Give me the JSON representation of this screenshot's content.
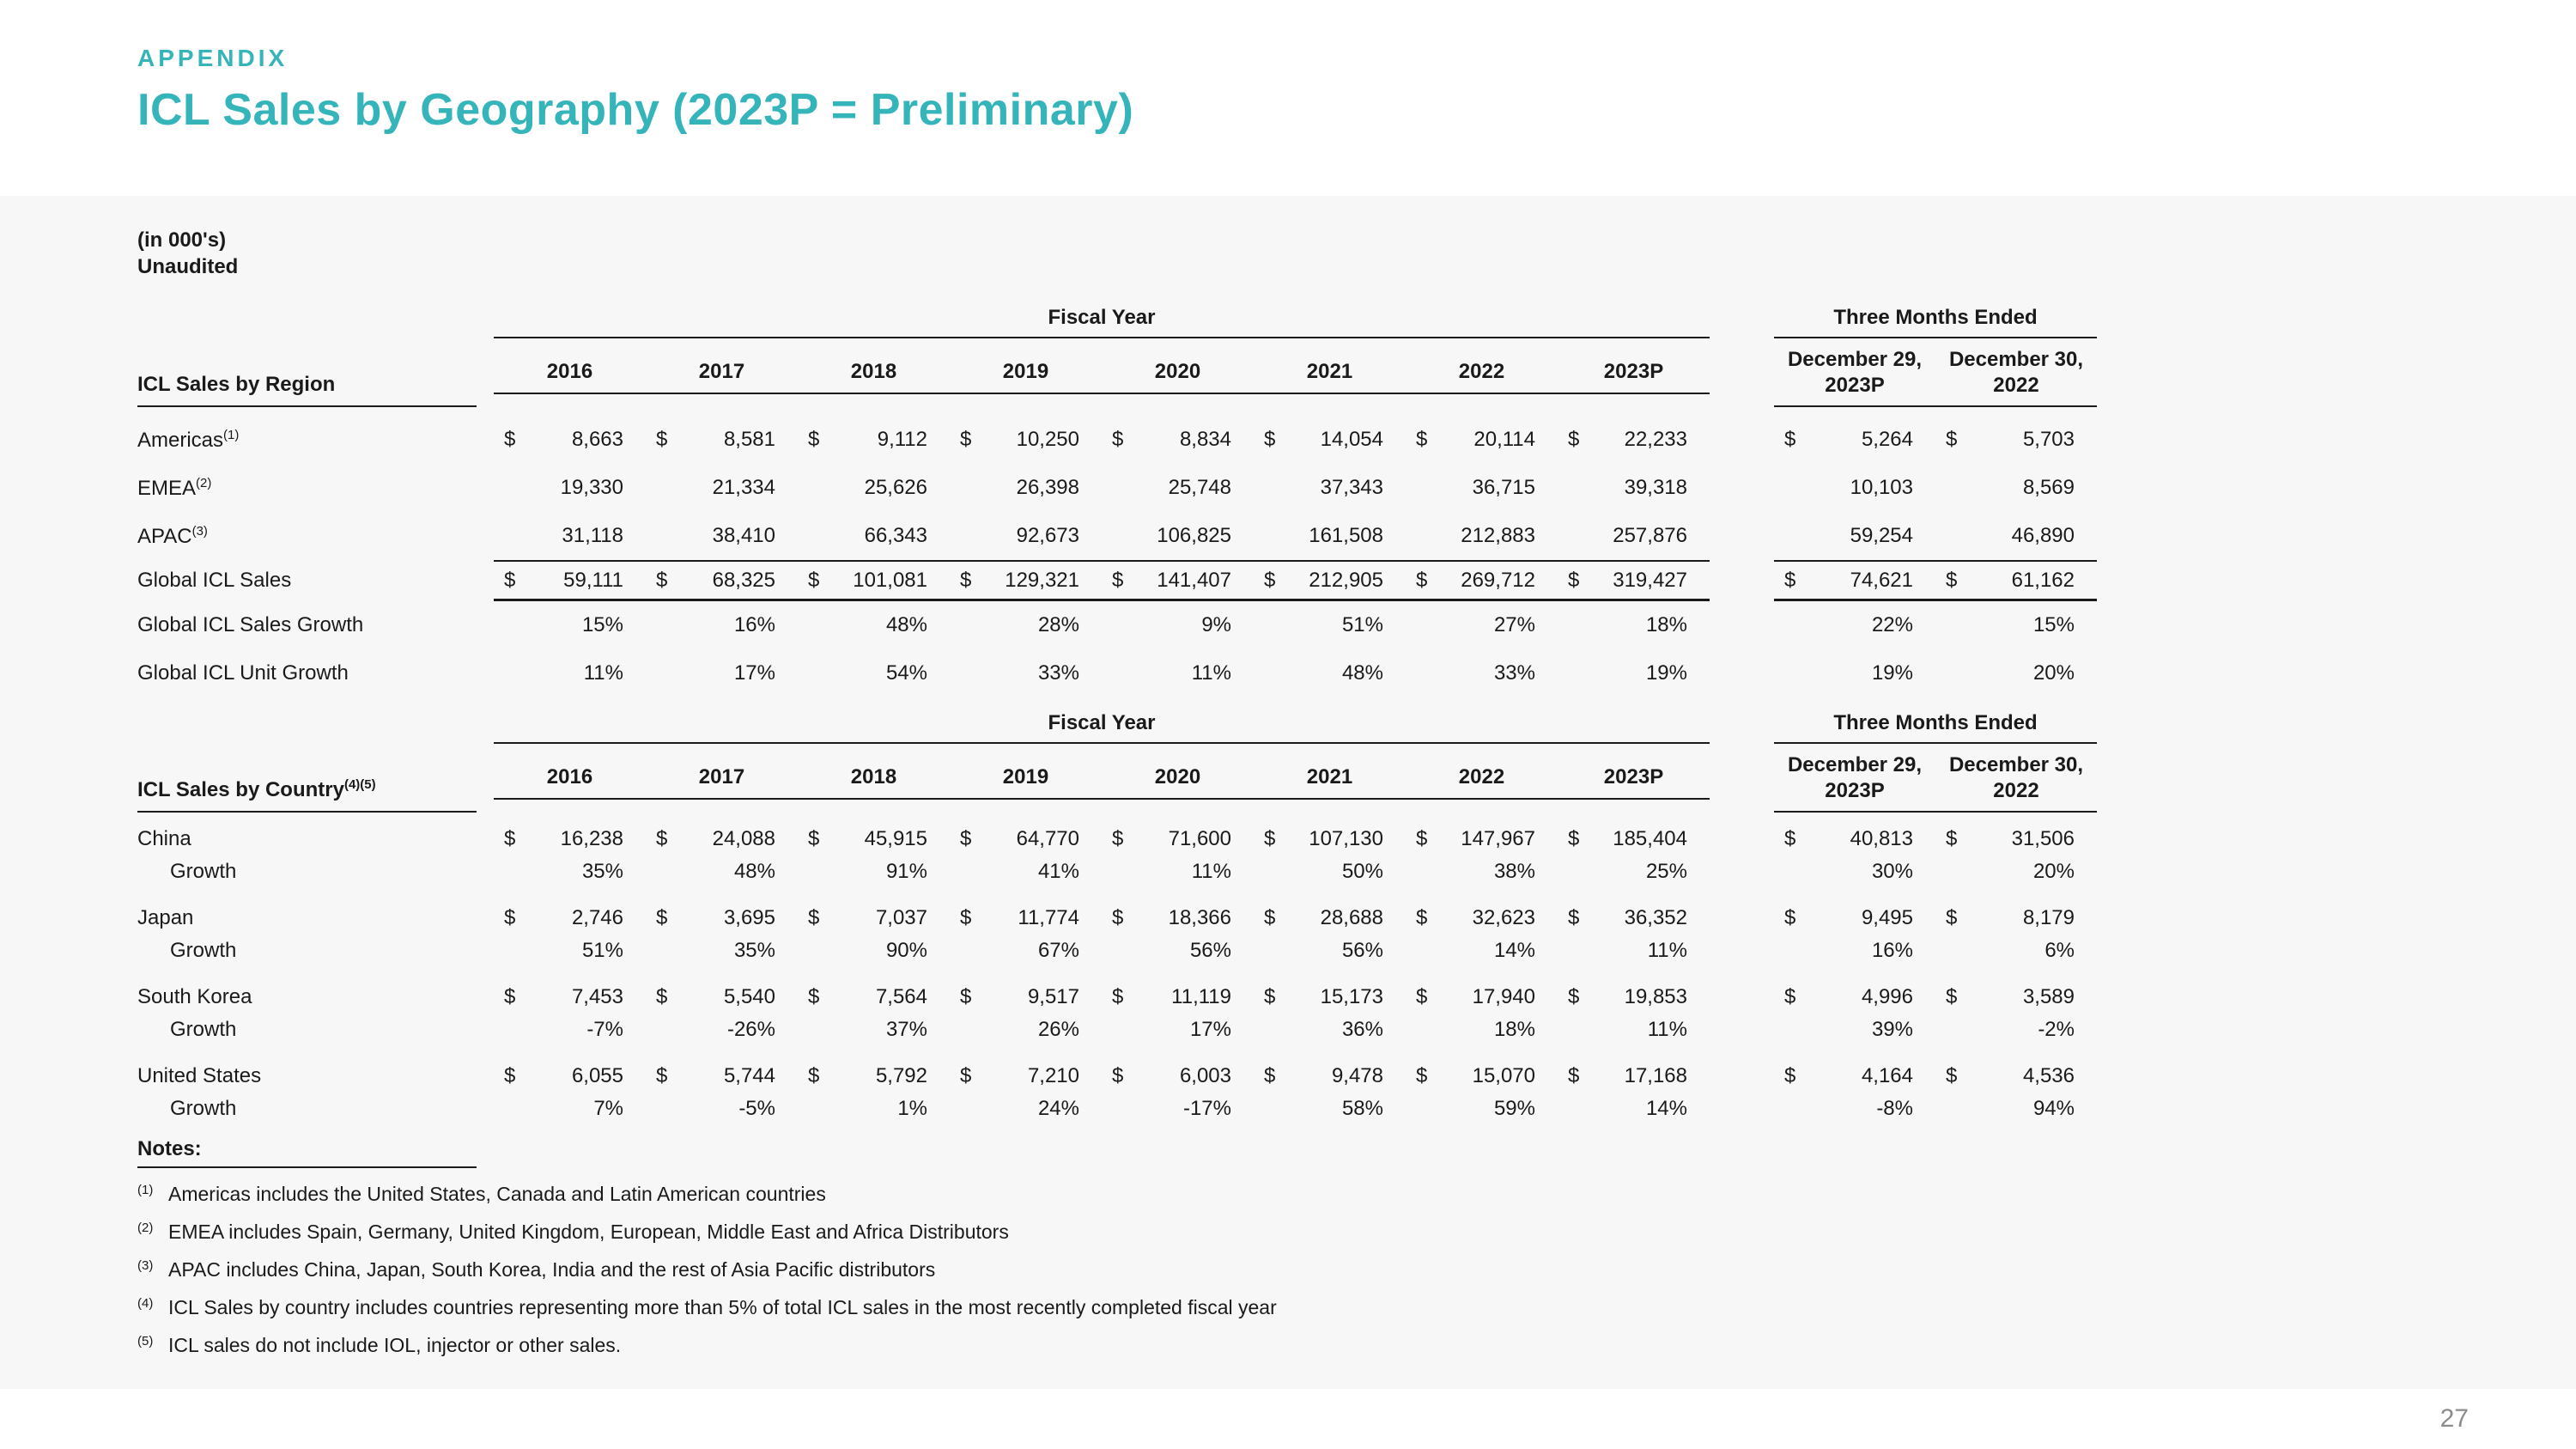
{
  "page": {
    "eyebrow": "APPENDIX",
    "title": "ICL Sales by Geography (2023P = Preliminary)",
    "page_number": "27",
    "accent_color": "#35b4ba"
  },
  "table_meta": {
    "units_label": "(in 000's)",
    "audit_label": "Unaudited",
    "fiscal_year_label": "Fiscal Year",
    "three_months_label": "Three Months Ended",
    "currency": "$",
    "years": [
      "2016",
      "2017",
      "2018",
      "2019",
      "2020",
      "2021",
      "2022",
      "2023P"
    ],
    "tme_headers": [
      {
        "line1": "December 29,",
        "line2": "2023P"
      },
      {
        "line1": "December 30,",
        "line2": "2022"
      }
    ]
  },
  "region_table": {
    "header_label": "ICL Sales by Region",
    "header_sup": "",
    "rows": [
      {
        "label": "Americas",
        "sup": "(1)",
        "dollar": true,
        "fy": [
          "8,663",
          "8,581",
          "9,112",
          "10,250",
          "8,834",
          "14,054",
          "20,114",
          "22,233"
        ],
        "tme": [
          "5,264",
          "5,703"
        ]
      },
      {
        "label": "EMEA",
        "sup": "(2)",
        "dollar": false,
        "fy": [
          "19,330",
          "21,334",
          "25,626",
          "26,398",
          "25,748",
          "37,343",
          "36,715",
          "39,318"
        ],
        "tme": [
          "10,103",
          "8,569"
        ]
      },
      {
        "label": "APAC",
        "sup": "(3)",
        "dollar": false,
        "fy": [
          "31,118",
          "38,410",
          "66,343",
          "92,673",
          "106,825",
          "161,508",
          "212,883",
          "257,876"
        ],
        "tme": [
          "59,254",
          "46,890"
        ]
      }
    ],
    "total_row": {
      "label": "Global ICL Sales",
      "dollar": true,
      "fy": [
        "59,111",
        "68,325",
        "101,081",
        "129,321",
        "141,407",
        "212,905",
        "269,712",
        "319,427"
      ],
      "tme": [
        "74,621",
        "61,162"
      ]
    },
    "growth_rows": [
      {
        "label": "Global ICL Sales Growth",
        "fy": [
          "15%",
          "16%",
          "48%",
          "28%",
          "9%",
          "51%",
          "27%",
          "18%"
        ],
        "tme": [
          "22%",
          "15%"
        ]
      },
      {
        "label": "Global ICL Unit Growth",
        "fy": [
          "11%",
          "17%",
          "54%",
          "33%",
          "11%",
          "48%",
          "33%",
          "19%"
        ],
        "tme": [
          "19%",
          "20%"
        ]
      }
    ]
  },
  "country_table": {
    "header_label": "ICL Sales by Country",
    "header_sup": "(4)(5)",
    "growth_label": "Growth",
    "rows": [
      {
        "label": "China",
        "fy": [
          "16,238",
          "24,088",
          "45,915",
          "64,770",
          "71,600",
          "107,130",
          "147,967",
          "185,404"
        ],
        "tme": [
          "40,813",
          "31,506"
        ],
        "growth_fy": [
          "35%",
          "48%",
          "91%",
          "41%",
          "11%",
          "50%",
          "38%",
          "25%"
        ],
        "growth_tme": [
          "30%",
          "20%"
        ]
      },
      {
        "label": "Japan",
        "fy": [
          "2,746",
          "3,695",
          "7,037",
          "11,774",
          "18,366",
          "28,688",
          "32,623",
          "36,352"
        ],
        "tme": [
          "9,495",
          "8,179"
        ],
        "growth_fy": [
          "51%",
          "35%",
          "90%",
          "67%",
          "56%",
          "56%",
          "14%",
          "11%"
        ],
        "growth_tme": [
          "16%",
          "6%"
        ]
      },
      {
        "label": "South Korea",
        "fy": [
          "7,453",
          "5,540",
          "7,564",
          "9,517",
          "11,119",
          "15,173",
          "17,940",
          "19,853"
        ],
        "tme": [
          "4,996",
          "3,589"
        ],
        "growth_fy": [
          "-7%",
          "-26%",
          "37%",
          "26%",
          "17%",
          "36%",
          "18%",
          "11%"
        ],
        "growth_tme": [
          "39%",
          "-2%"
        ]
      },
      {
        "label": "United States",
        "fy": [
          "6,055",
          "5,744",
          "5,792",
          "7,210",
          "6,003",
          "9,478",
          "15,070",
          "17,168"
        ],
        "tme": [
          "4,164",
          "4,536"
        ],
        "growth_fy": [
          "7%",
          "-5%",
          "1%",
          "24%",
          "-17%",
          "58%",
          "59%",
          "14%"
        ],
        "growth_tme": [
          "-8%",
          "94%"
        ]
      }
    ]
  },
  "notes": {
    "header": "Notes:",
    "items": [
      {
        "sup": "(1)",
        "text": "Americas includes the United States, Canada and Latin American countries"
      },
      {
        "sup": "(2)",
        "text": "EMEA includes Spain, Germany, United Kingdom, European, Middle East and Africa Distributors"
      },
      {
        "sup": "(3)",
        "text": "APAC includes China, Japan, South Korea, India and the rest of Asia Pacific distributors"
      },
      {
        "sup": "(4)",
        "text": "ICL Sales by country includes countries representing more than 5% of total ICL sales in the most recently completed fiscal year"
      },
      {
        "sup": "(5)",
        "text": "ICL sales do not include IOL, injector or other sales."
      }
    ]
  }
}
